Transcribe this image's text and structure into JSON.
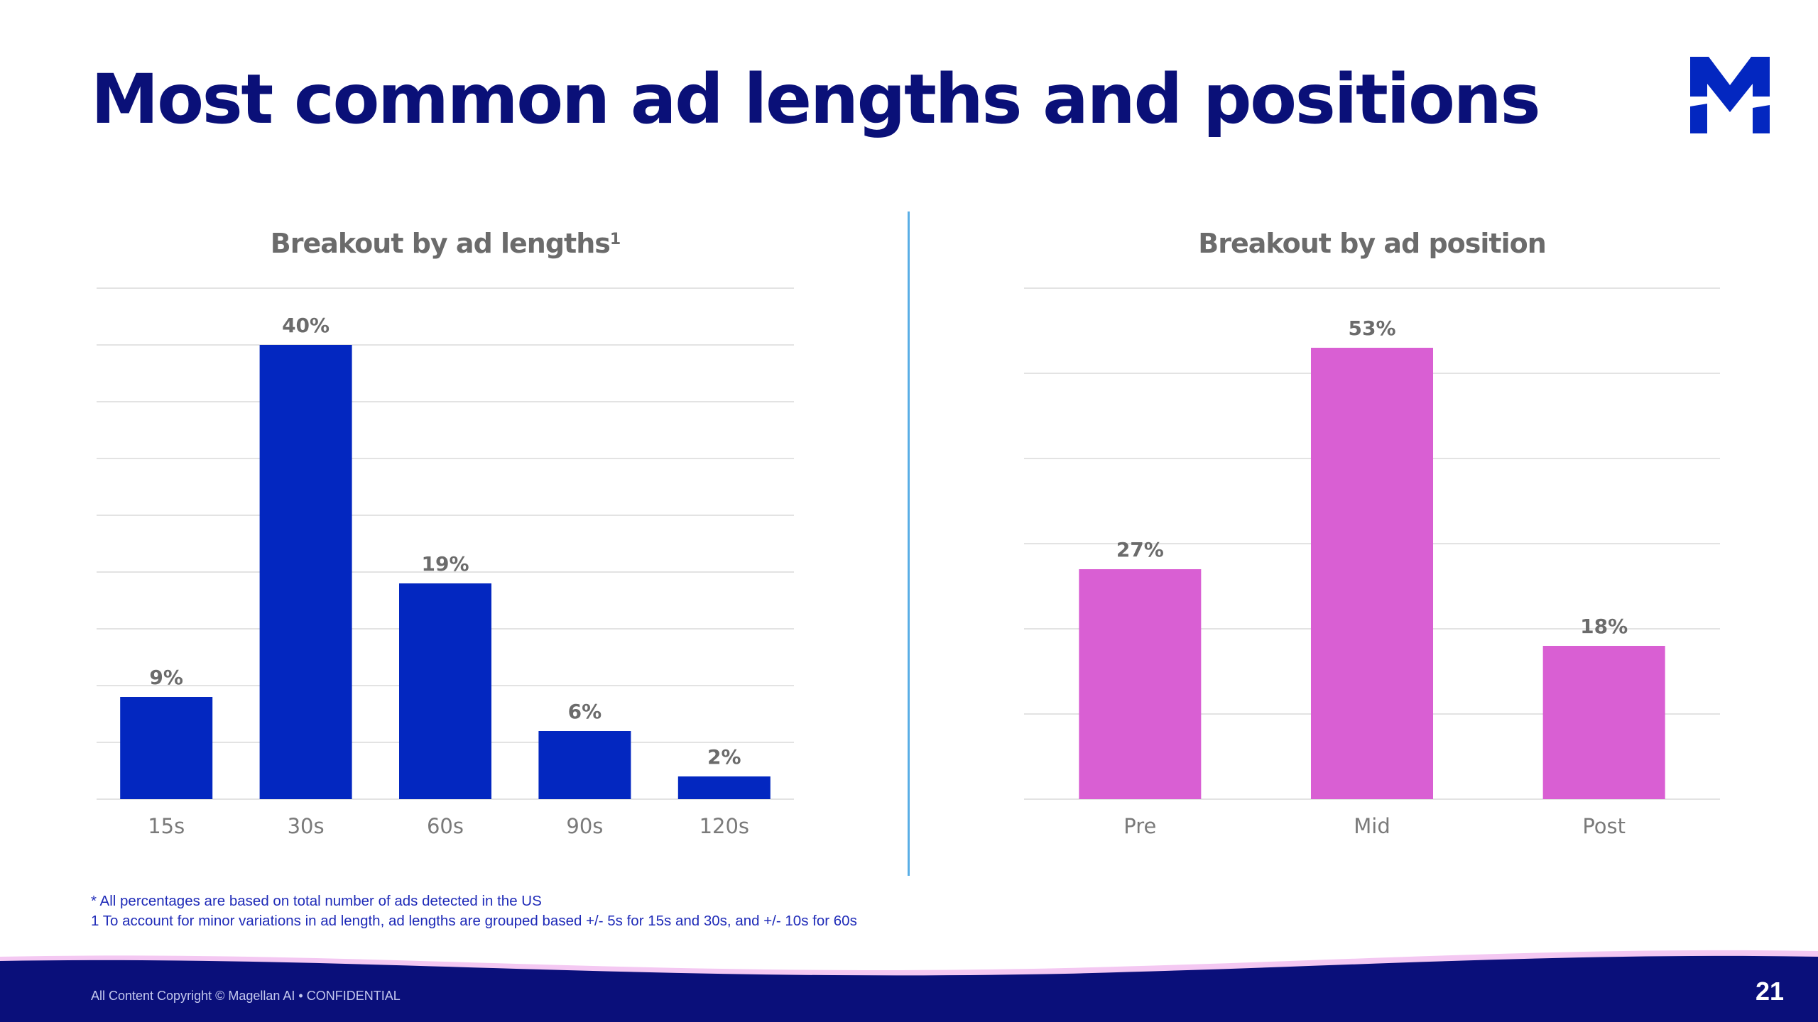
{
  "slide": {
    "title": "Most common ad lengths and positions",
    "logo": "magellan-m-logo",
    "page_number": "21",
    "footnotes": [
      "* All percentages are based on total number of ads detected in the US",
      "1 To account for minor variations in ad length, ad lengths are grouped based +/- 5s for 15s and 30s, and +/- 10s for 60s"
    ],
    "copyright": "All Content Copyright © Magellan AI • CONFIDENTIAL"
  },
  "colors": {
    "title": "#0a1078",
    "bar_blue": "#0327c0",
    "bar_pink": "#d95fd3",
    "divider": "#5aaee6",
    "footer": "#0a0f7a",
    "wave": "#f4c8f2"
  },
  "chart_data": [
    {
      "type": "bar",
      "title": "Breakout by ad lengths",
      "title_superscript": "1",
      "categories": [
        "15s",
        "30s",
        "60s",
        "90s",
        "120s"
      ],
      "values": [
        9,
        40,
        19,
        6,
        2
      ],
      "data_labels": [
        "9%",
        "40%",
        "19%",
        "6%",
        "2%"
      ],
      "ylim": [
        0,
        45
      ],
      "grid": true,
      "color": "#0327c0"
    },
    {
      "type": "bar",
      "title": "Breakout by ad position",
      "categories": [
        "Pre",
        "Mid",
        "Post"
      ],
      "values": [
        27,
        53,
        18
      ],
      "data_labels": [
        "27%",
        "53%",
        "18%"
      ],
      "ylim": [
        0,
        60
      ],
      "grid": true,
      "color": "#d95fd3"
    }
  ]
}
